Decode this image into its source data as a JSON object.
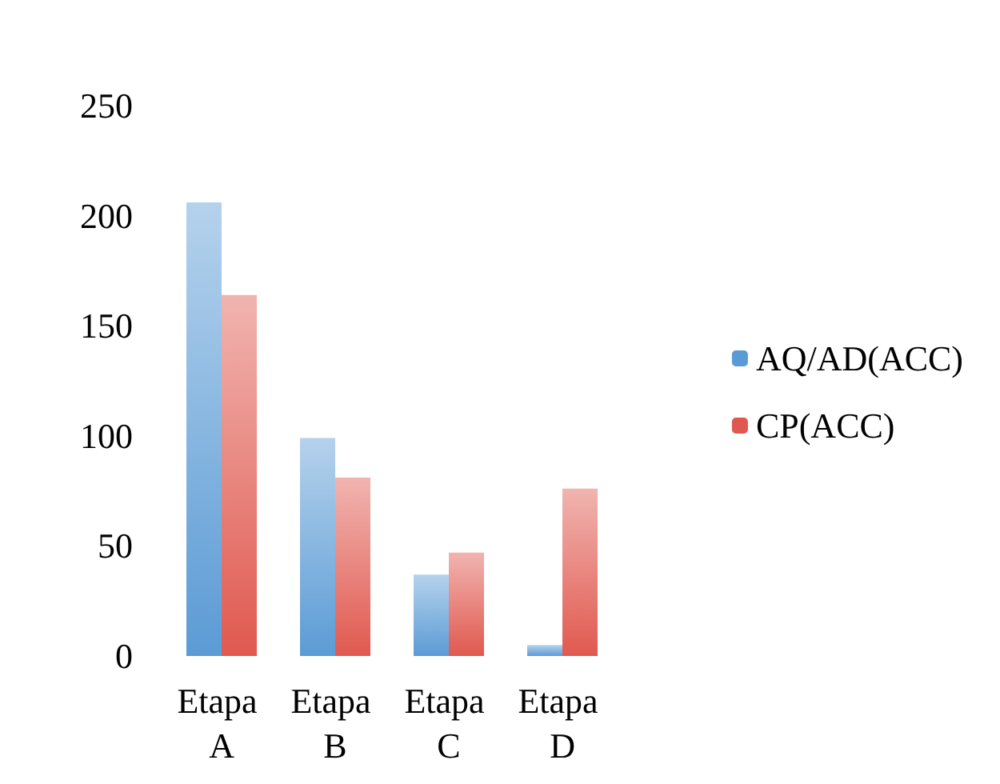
{
  "chart_data": {
    "type": "bar",
    "categories": [
      "Etapa A",
      "Etapa B",
      "Etapa C",
      "Etapa D"
    ],
    "series": [
      {
        "name": "AQ/AD(ACC)",
        "color": "#5b9bd5",
        "values": [
          206,
          99,
          37,
          5
        ]
      },
      {
        "name": "CP(ACC)",
        "color": "#e0594f",
        "values": [
          164,
          81,
          47,
          76
        ]
      }
    ],
    "ylim": [
      0,
      250
    ],
    "yticks": [
      0,
      50,
      100,
      150,
      200,
      250
    ],
    "grid": false,
    "legend": "right"
  }
}
